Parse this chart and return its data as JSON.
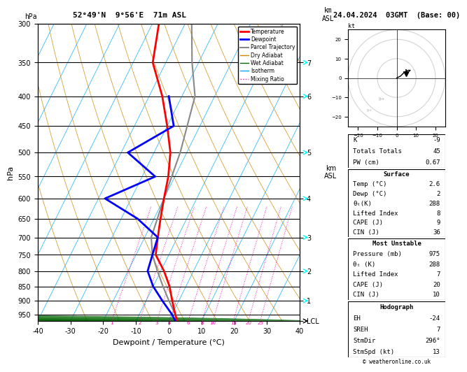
{
  "title_left": "52°49'N  9°56'E  71m ASL",
  "title_right": "24.04.2024  03GMT  (Base: 00)",
  "xlabel": "Dewpoint / Temperature (°C)",
  "ylabel_left": "hPa",
  "pressure_levels": [
    300,
    350,
    400,
    450,
    500,
    550,
    600,
    650,
    700,
    750,
    800,
    850,
    900,
    950
  ],
  "xlim": [
    -40,
    40
  ],
  "temp_profile": {
    "pressure": [
      975,
      950,
      900,
      850,
      800,
      750,
      700,
      650,
      600,
      550,
      500,
      450,
      400,
      350,
      300
    ],
    "temp": [
      2.6,
      1,
      -2,
      -5,
      -9,
      -14,
      -16,
      -18,
      -20,
      -22,
      -25,
      -30,
      -36,
      -44,
      -48
    ]
  },
  "dewp_profile": {
    "pressure": [
      975,
      950,
      900,
      850,
      800,
      750,
      700,
      650,
      600,
      550,
      500,
      450,
      400
    ],
    "dewp": [
      2,
      0,
      -5,
      -10,
      -14,
      -15,
      -16,
      -25,
      -38,
      -26,
      -38,
      -28,
      -34
    ]
  },
  "parcel_profile": {
    "pressure": [
      975,
      950,
      900,
      850,
      800,
      750,
      700,
      600,
      500,
      400,
      350,
      300
    ],
    "temp": [
      2.6,
      1,
      -3,
      -7,
      -11,
      -15,
      -18,
      -20,
      -22,
      -26,
      -32,
      -38
    ]
  },
  "mixing_ratio_lines": [
    1,
    2,
    3,
    4,
    6,
    8,
    10,
    15,
    20,
    25
  ],
  "km_axis_ticks": {
    "pressures": [
      975,
      900,
      800,
      700,
      600,
      500,
      400,
      350
    ],
    "km_vals": [
      "LCL",
      "1",
      "2",
      "3",
      "4",
      "5",
      "6",
      "7"
    ]
  },
  "surface_data": {
    "K": -9,
    "Totals_Totals": 45,
    "PW_cm": 0.67,
    "Temp_C": 2.6,
    "Dewp_C": 2,
    "theta_e_K": 288,
    "Lifted_Index": 8,
    "CAPE_J": 9,
    "CIN_J": 36
  },
  "most_unstable": {
    "Pressure_mb": 975,
    "theta_e_K": 288,
    "Lifted_Index": 7,
    "CAPE_J": 20,
    "CIN_J": 10
  },
  "hodograph": {
    "EH": -24,
    "SREH": 7,
    "StmDir": 296,
    "StmSpd_kt": 13
  },
  "colors": {
    "temp": "#ff0000",
    "dewp": "#0000ff",
    "parcel": "#888888",
    "dry_adiabat": "#cc8800",
    "wet_adiabat": "#006600",
    "isotherm": "#00aaff",
    "mixing_ratio": "#ff00aa",
    "background": "#ffffff",
    "grid": "#000000"
  },
  "skew_factor": 45.0,
  "p_min": 300,
  "p_max": 975
}
